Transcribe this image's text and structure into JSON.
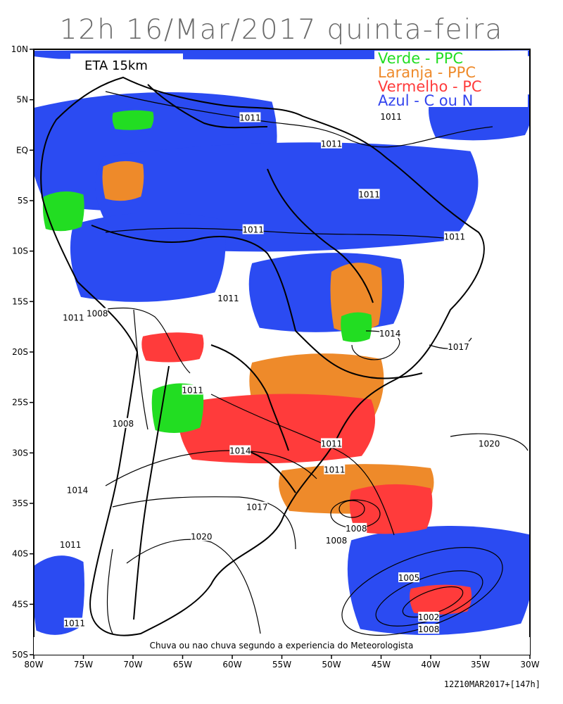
{
  "title": "12h 16/Mar/2017 quinta-feira",
  "model": "ETA 15km",
  "legend": [
    {
      "text": "Verde - PPC",
      "color": "#22dd22"
    },
    {
      "text": "Laranja - PPC",
      "color": "#ee8a2a"
    },
    {
      "text": "Vermelho - PC",
      "color": "#ff3b3b"
    },
    {
      "text": "Azul - C ou N",
      "color": "#3344ee"
    }
  ],
  "caption": "Chuva ou nao chuva segundo a experiencia do Meteorologista",
  "run_label": "12Z10MAR2017+[147h]",
  "colors": {
    "green": "#22dd22",
    "orange": "#ee8a2a",
    "red": "#ff3b3b",
    "blue": "#2b4bf2"
  },
  "lat_ticks": [
    "10N",
    "5N",
    "EQ",
    "5S",
    "10S",
    "15S",
    "20S",
    "25S",
    "30S",
    "35S",
    "40S",
    "45S",
    "50S"
  ],
  "lon_ticks": [
    "80W",
    "75W",
    "70W",
    "65W",
    "60W",
    "55W",
    "50W",
    "45W",
    "40W",
    "35W",
    "30W"
  ],
  "isobar_labels": [
    {
      "text": "1011",
      "lon": -58.2,
      "lat": 3.2
    },
    {
      "text": "1011",
      "lon": -50.0,
      "lat": 0.6
    },
    {
      "text": "1011",
      "lon": -44.0,
      "lat": 3.3
    },
    {
      "text": "1011",
      "lon": -46.2,
      "lat": -4.4
    },
    {
      "text": "1011",
      "lon": -57.9,
      "lat": -7.9
    },
    {
      "text": "1011",
      "lon": -37.6,
      "lat": -8.6
    },
    {
      "text": "1011",
      "lon": -60.4,
      "lat": -14.7
    },
    {
      "text": "1011",
      "lon": -76.0,
      "lat": -16.6
    },
    {
      "text": "1008",
      "lon": -73.6,
      "lat": -16.2
    },
    {
      "text": "1014",
      "lon": -44.1,
      "lat": -18.2
    },
    {
      "text": "1017",
      "lon": -37.2,
      "lat": -19.5
    },
    {
      "text": "1011",
      "lon": -64.0,
      "lat": -23.8
    },
    {
      "text": "1008",
      "lon": -71.0,
      "lat": -27.1
    },
    {
      "text": "1011",
      "lon": -50.0,
      "lat": -29.1
    },
    {
      "text": "1014",
      "lon": -59.2,
      "lat": -29.8
    },
    {
      "text": "1020",
      "lon": -34.1,
      "lat": -29.1
    },
    {
      "text": "1011",
      "lon": -49.7,
      "lat": -31.7
    },
    {
      "text": "1014",
      "lon": -75.6,
      "lat": -33.7
    },
    {
      "text": "1017",
      "lon": -57.5,
      "lat": -35.4
    },
    {
      "text": "1008",
      "lon": -47.5,
      "lat": -37.5
    },
    {
      "text": "1008",
      "lon": -49.5,
      "lat": -38.7
    },
    {
      "text": "1020",
      "lon": -63.1,
      "lat": -38.3
    },
    {
      "text": "1011",
      "lon": -76.3,
      "lat": -39.1
    },
    {
      "text": "1005",
      "lon": -42.2,
      "lat": -42.4
    },
    {
      "text": "1002",
      "lon": -40.2,
      "lat": -46.3
    },
    {
      "text": "1008",
      "lon": -40.2,
      "lat": -47.5
    },
    {
      "text": "1011",
      "lon": -75.9,
      "lat": -46.9
    }
  ],
  "isobar_centers": [
    {
      "lon": -48.5,
      "lat": -35.6
    },
    {
      "lon": -38.5,
      "lat": -45.5
    }
  ],
  "blue_regions": [
    {
      "lon0": -80,
      "lon1": -30,
      "lat0": 10,
      "lat1": 9
    },
    {
      "lon0": -80,
      "lon1": -56,
      "lat0": 6,
      "lat1": -6
    },
    {
      "lon0": -73,
      "lon1": -36,
      "lat0": 1,
      "lat1": -10
    },
    {
      "lon0": -58,
      "lon1": -43,
      "lat0": -10,
      "lat1": -18
    },
    {
      "lon0": -76,
      "lon1": -61,
      "lat0": -6,
      "lat1": -15
    },
    {
      "lon0": -40,
      "lon1": -30,
      "lat0": 6,
      "lat1": 1
    },
    {
      "lon0": -48,
      "lon1": -30,
      "lat0": -37,
      "lat1": -48
    },
    {
      "lon0": -80,
      "lon1": -75,
      "lat0": -40,
      "lat1": -48
    }
  ],
  "orange_regions": [
    {
      "lon0": -58,
      "lon1": -45,
      "lat0": -20,
      "lat1": -27
    },
    {
      "lon0": -50,
      "lon1": -45,
      "lat0": -11,
      "lat1": -18
    },
    {
      "lon0": -73,
      "lon1": -69,
      "lat0": -1,
      "lat1": -5
    },
    {
      "lon0": -55,
      "lon1": -40,
      "lat0": -31,
      "lat1": -36
    }
  ],
  "red_regions": [
    {
      "lon0": -65,
      "lon1": -46,
      "lat0": -24,
      "lat1": -31
    },
    {
      "lon0": -48,
      "lon1": -40,
      "lat0": -33,
      "lat1": -38
    },
    {
      "lon0": -42,
      "lon1": -36,
      "lat0": -43,
      "lat1": -46
    },
    {
      "lon0": -69,
      "lon1": -63,
      "lat0": -18,
      "lat1": -21
    }
  ],
  "green_regions": [
    {
      "lon0": -68,
      "lon1": -63,
      "lat0": -23,
      "lat1": -28
    },
    {
      "lon0": -49,
      "lon1": -46,
      "lat0": -16,
      "lat1": -19
    },
    {
      "lon0": -72,
      "lon1": -68,
      "lat0": 4,
      "lat1": 2
    },
    {
      "lon0": -79,
      "lon1": -75,
      "lat0": -4,
      "lat1": -8
    }
  ]
}
